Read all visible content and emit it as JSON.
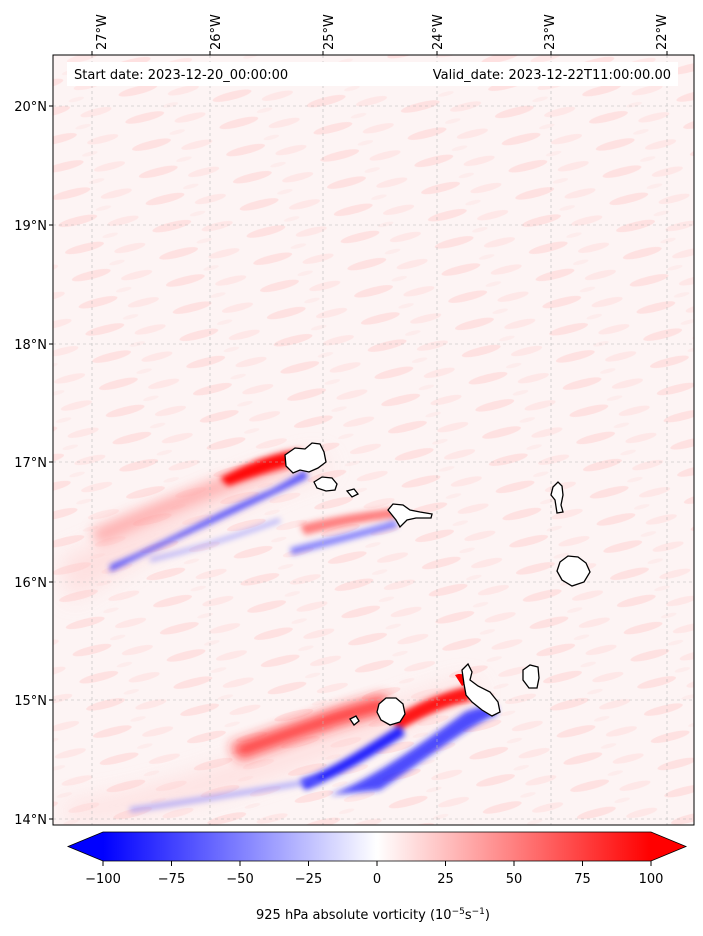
{
  "map": {
    "start_date_text": "Start date: 2023-12-20_00:00:00",
    "valid_date_text": "Valid_date: 2023-12-22T11:00:00.00",
    "lon_ticks": [
      {
        "value": -27,
        "label": "27°W"
      },
      {
        "value": -26,
        "label": "26°W"
      },
      {
        "value": -25,
        "label": "25°W"
      },
      {
        "value": -24,
        "label": "24°W"
      },
      {
        "value": -23,
        "label": "23°W"
      },
      {
        "value": -22,
        "label": "22°W"
      }
    ],
    "lat_ticks": [
      {
        "value": 20,
        "label": "20°N"
      },
      {
        "value": 19,
        "label": "19°N"
      },
      {
        "value": 18,
        "label": "18°N"
      },
      {
        "value": 17,
        "label": "17°N"
      },
      {
        "value": 16,
        "label": "16°N"
      },
      {
        "value": 15,
        "label": "15°N"
      },
      {
        "value": 14,
        "label": "14°N"
      }
    ],
    "lon_range": [
      -27.7,
      -21.8
    ],
    "lat_range": [
      13.95,
      20.4
    ],
    "gridlines": true,
    "projection": "lat-lon"
  },
  "colorbar": {
    "ticks": [
      "−100",
      "−75",
      "−50",
      "−25",
      "0",
      "25",
      "50",
      "75",
      "100"
    ],
    "tick_values": [
      -100,
      -75,
      -50,
      -25,
      0,
      25,
      50,
      75,
      100
    ],
    "range": [
      -100,
      100
    ],
    "colormap": "bwr",
    "label": "925 hPa absolute vorticity (10⁻⁵s⁻¹)",
    "label_base": "925 hPa absolute vorticity (10",
    "label_exp1": "−5",
    "label_mid": "s",
    "label_exp2": "−1",
    "label_end": ")",
    "extend": "both"
  },
  "colors": {
    "negative": "#0000ff",
    "positive": "#ff0000",
    "neutral": "#ffffff",
    "coastline": "#000000"
  }
}
